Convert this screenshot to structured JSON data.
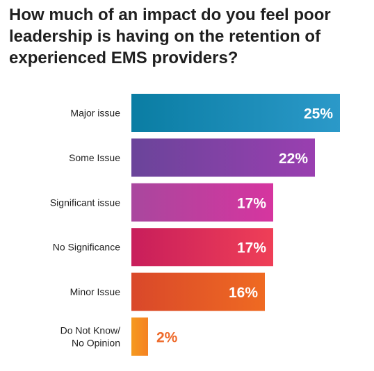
{
  "chart_data": {
    "type": "bar",
    "orientation": "horizontal",
    "title": "How much of an impact do you feel poor leadership is having on the retention of experienced EMS providers?",
    "categories": [
      [
        "Major issue"
      ],
      [
        "Some Issue"
      ],
      [
        "Significant issue"
      ],
      [
        "No Significance"
      ],
      [
        "Minor Issue"
      ],
      [
        "Do Not Know/",
        "No Opinion"
      ]
    ],
    "values": [
      25,
      22,
      17,
      17,
      16,
      2
    ],
    "value_labels": [
      "25%",
      "22%",
      "17%",
      "17%",
      "16%",
      "2%"
    ],
    "xlim": [
      0,
      25
    ],
    "grid": false,
    "legend": "none",
    "colors": [
      [
        "#0a7da3",
        "#2b99c9"
      ],
      [
        "#6a449a",
        "#9a3fb0"
      ],
      [
        "#a9479e",
        "#d6359f"
      ],
      [
        "#c81e5b",
        "#ef3f57"
      ],
      [
        "#d9482a",
        "#ef6a22"
      ],
      [
        "#f59a1f",
        "#f58223"
      ]
    ],
    "outside_label_color": "#ee6a2a"
  }
}
